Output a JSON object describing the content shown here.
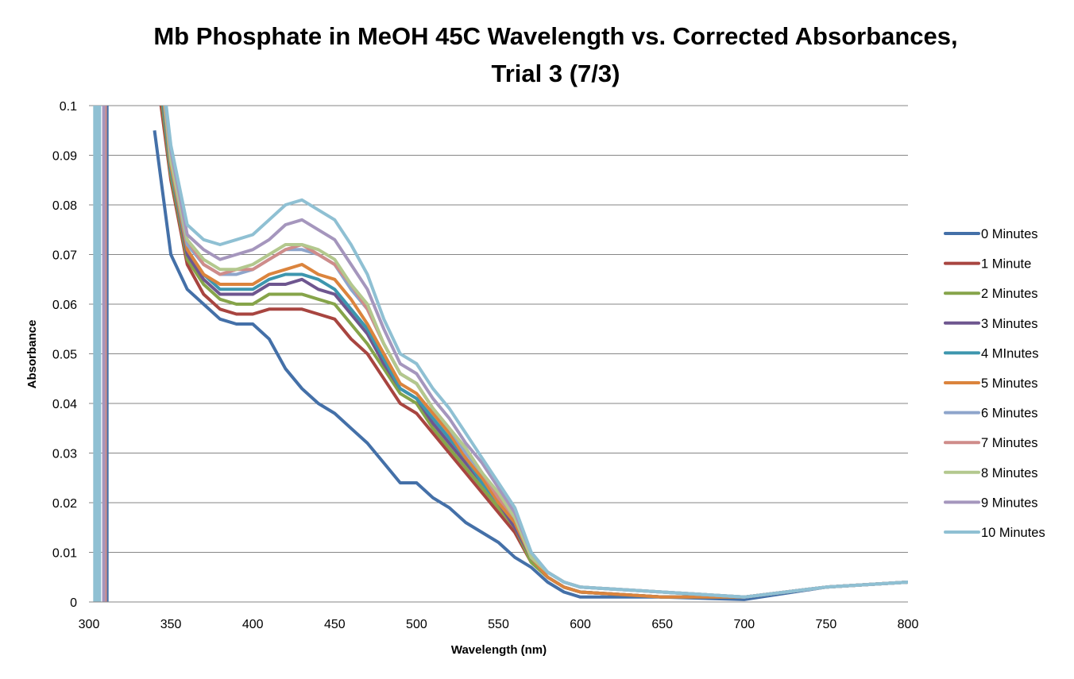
{
  "chart_data": {
    "type": "line",
    "title_line1": "Mb Phosphate in MeOH 45C Wavelength vs. Corrected Absorbances,",
    "title_line2": "Trial 3 (7/3)",
    "xlabel": "Wavelength (nm)",
    "ylabel": "Absorbance",
    "xlim": [
      300,
      800
    ],
    "ylim": [
      0,
      0.1
    ],
    "xticks": [
      "300",
      "350",
      "400",
      "450",
      "500",
      "550",
      "600",
      "650",
      "700",
      "750",
      "800"
    ],
    "yticks": [
      "0",
      "0.01",
      "0.02",
      "0.03",
      "0.04",
      "0.05",
      "0.06",
      "0.07",
      "0.08",
      "0.09",
      "0.1"
    ],
    "grid": "horizontal",
    "legend_position": "right",
    "x": [
      340,
      350,
      360,
      370,
      380,
      390,
      400,
      410,
      420,
      430,
      440,
      450,
      460,
      470,
      480,
      490,
      500,
      510,
      520,
      530,
      540,
      550,
      560,
      570,
      580,
      590,
      600,
      650,
      700,
      750,
      800
    ],
    "series": [
      {
        "name": "0 Minutes",
        "color": "#4470a8",
        "spike_nm": 311,
        "values": [
          0.095,
          0.07,
          0.063,
          0.06,
          0.057,
          0.056,
          0.056,
          0.053,
          0.047,
          0.043,
          0.04,
          0.038,
          0.035,
          0.032,
          0.028,
          0.024,
          0.024,
          0.021,
          0.019,
          0.016,
          0.014,
          0.012,
          0.009,
          0.007,
          0.004,
          0.002,
          0.001,
          0.001,
          0.0005,
          0.003,
          0.004
        ]
      },
      {
        "name": "1 Minute",
        "color": "#a84540",
        "values": [
          0.11,
          0.085,
          0.068,
          0.062,
          0.059,
          0.058,
          0.058,
          0.059,
          0.059,
          0.059,
          0.058,
          0.057,
          0.053,
          0.05,
          0.045,
          0.04,
          0.038,
          0.034,
          0.03,
          0.026,
          0.022,
          0.018,
          0.014,
          0.008,
          0.005,
          0.003,
          0.002,
          0.001,
          0.001,
          0.003,
          0.004
        ]
      },
      {
        "name": "2 Minutes",
        "color": "#86a44a",
        "values": [
          0.113,
          0.086,
          0.069,
          0.064,
          0.061,
          0.06,
          0.06,
          0.062,
          0.062,
          0.062,
          0.061,
          0.06,
          0.056,
          0.052,
          0.047,
          0.042,
          0.04,
          0.035,
          0.031,
          0.027,
          0.023,
          0.019,
          0.015,
          0.008,
          0.005,
          0.003,
          0.002,
          0.001,
          0.001,
          0.003,
          0.004
        ]
      },
      {
        "name": "3 Minutes",
        "color": "#6e568f",
        "values": [
          0.115,
          0.087,
          0.07,
          0.065,
          0.062,
          0.062,
          0.062,
          0.064,
          0.064,
          0.065,
          0.063,
          0.062,
          0.058,
          0.054,
          0.048,
          0.043,
          0.041,
          0.036,
          0.032,
          0.028,
          0.024,
          0.02,
          0.015,
          0.009,
          0.005,
          0.003,
          0.002,
          0.001,
          0.001,
          0.003,
          0.004
        ]
      },
      {
        "name": "4 MInutes",
        "color": "#3d96ae",
        "values": [
          0.116,
          0.087,
          0.071,
          0.066,
          0.063,
          0.063,
          0.063,
          0.065,
          0.066,
          0.066,
          0.065,
          0.063,
          0.059,
          0.055,
          0.049,
          0.043,
          0.041,
          0.037,
          0.033,
          0.029,
          0.024,
          0.02,
          0.016,
          0.009,
          0.005,
          0.003,
          0.002,
          0.001,
          0.001,
          0.003,
          0.004
        ]
      },
      {
        "name": "5 Minutes",
        "color": "#db843d",
        "values": [
          0.118,
          0.088,
          0.071,
          0.066,
          0.064,
          0.064,
          0.064,
          0.066,
          0.067,
          0.068,
          0.066,
          0.065,
          0.061,
          0.056,
          0.05,
          0.044,
          0.042,
          0.038,
          0.034,
          0.029,
          0.025,
          0.02,
          0.016,
          0.009,
          0.005,
          0.003,
          0.002,
          0.001,
          0.001,
          0.003,
          0.004
        ]
      },
      {
        "name": "6 Minutes",
        "color": "#8ea5cb",
        "values": [
          0.119,
          0.089,
          0.072,
          0.068,
          0.066,
          0.066,
          0.067,
          0.069,
          0.071,
          0.071,
          0.07,
          0.068,
          0.063,
          0.059,
          0.052,
          0.046,
          0.044,
          0.039,
          0.035,
          0.03,
          0.026,
          0.021,
          0.017,
          0.009,
          0.006,
          0.004,
          0.003,
          0.002,
          0.001,
          0.003,
          0.004
        ]
      },
      {
        "name": "7 Minutes",
        "color": "#cf8c8a",
        "spike_nm": 310,
        "values": [
          0.119,
          0.089,
          0.073,
          0.068,
          0.066,
          0.067,
          0.067,
          0.069,
          0.071,
          0.072,
          0.07,
          0.068,
          0.064,
          0.059,
          0.052,
          0.046,
          0.044,
          0.039,
          0.035,
          0.031,
          0.026,
          0.021,
          0.017,
          0.009,
          0.006,
          0.004,
          0.003,
          0.002,
          0.001,
          0.003,
          0.004
        ]
      },
      {
        "name": "8 Minutes",
        "color": "#b3c88e",
        "values": [
          0.12,
          0.089,
          0.073,
          0.069,
          0.067,
          0.067,
          0.068,
          0.07,
          0.072,
          0.072,
          0.071,
          0.069,
          0.064,
          0.06,
          0.052,
          0.046,
          0.044,
          0.039,
          0.035,
          0.031,
          0.026,
          0.022,
          0.017,
          0.009,
          0.006,
          0.004,
          0.003,
          0.002,
          0.001,
          0.003,
          0.004
        ]
      },
      {
        "name": "9 Minutes",
        "color": "#a596bd",
        "spike_nm": 309,
        "values": [
          0.12,
          0.091,
          0.074,
          0.071,
          0.069,
          0.07,
          0.071,
          0.073,
          0.076,
          0.077,
          0.075,
          0.073,
          0.068,
          0.063,
          0.055,
          0.048,
          0.046,
          0.041,
          0.037,
          0.032,
          0.028,
          0.023,
          0.018,
          0.01,
          0.006,
          0.004,
          0.003,
          0.002,
          0.001,
          0.003,
          0.004
        ]
      },
      {
        "name": "10 Minutes",
        "color": "#8fc0d3",
        "spike_nm": 305,
        "values": [
          0.12,
          0.092,
          0.076,
          0.073,
          0.072,
          0.073,
          0.074,
          0.077,
          0.08,
          0.081,
          0.079,
          0.077,
          0.072,
          0.066,
          0.057,
          0.05,
          0.048,
          0.043,
          0.039,
          0.034,
          0.029,
          0.024,
          0.019,
          0.01,
          0.006,
          0.004,
          0.003,
          0.002,
          0.001,
          0.003,
          0.004
        ]
      }
    ]
  }
}
